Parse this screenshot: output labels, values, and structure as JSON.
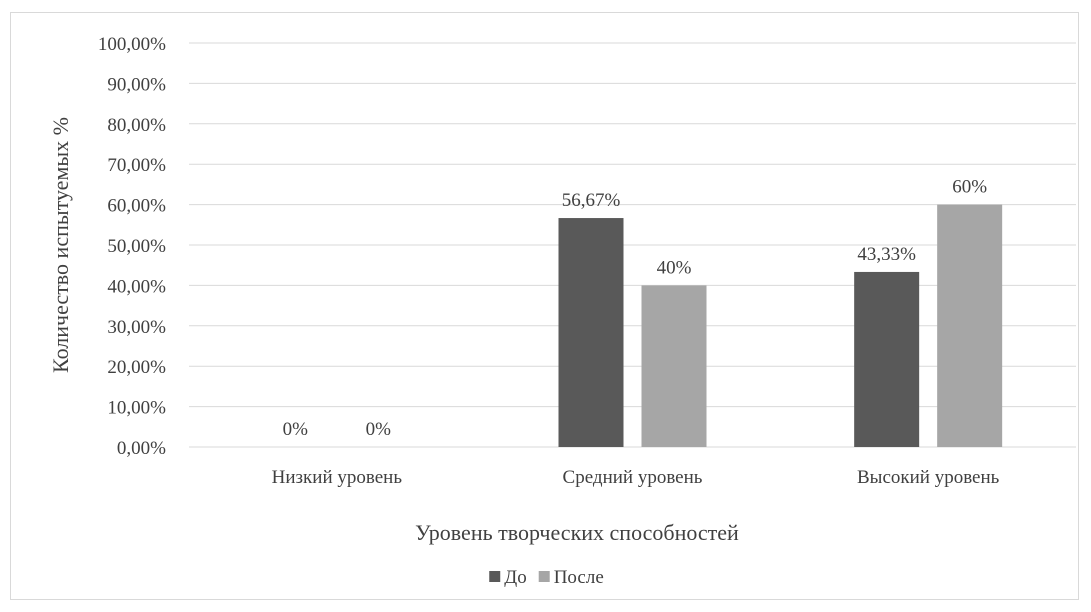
{
  "chart_data": {
    "type": "bar",
    "title": "",
    "xlabel": "Уровень творческих способностей",
    "ylabel": "Количество испытуемых %",
    "categories": [
      "Низкий уровень",
      "Средний уровень",
      "Высокий уровень"
    ],
    "series": [
      {
        "name": "До",
        "values": [
          0,
          56.67,
          43.33
        ],
        "labels": [
          "0%",
          "56,67%",
          "43,33%"
        ],
        "color": "#595959"
      },
      {
        "name": "После",
        "values": [
          0,
          40,
          60
        ],
        "labels": [
          "0%",
          "40%",
          "60%"
        ],
        "color": "#a6a6a6"
      }
    ],
    "ylim": [
      0,
      100
    ],
    "yticks": [
      0,
      10,
      20,
      30,
      40,
      50,
      60,
      70,
      80,
      90,
      100
    ],
    "ytick_labels": [
      "0,00%",
      "10,00%",
      "20,00%",
      "30,00%",
      "40,00%",
      "50,00%",
      "60,00%",
      "70,00%",
      "80,00%",
      "90,00%",
      "100,00%"
    ],
    "grid": true,
    "legend_position": "bottom",
    "gridline_color": "#d9d9d9"
  }
}
